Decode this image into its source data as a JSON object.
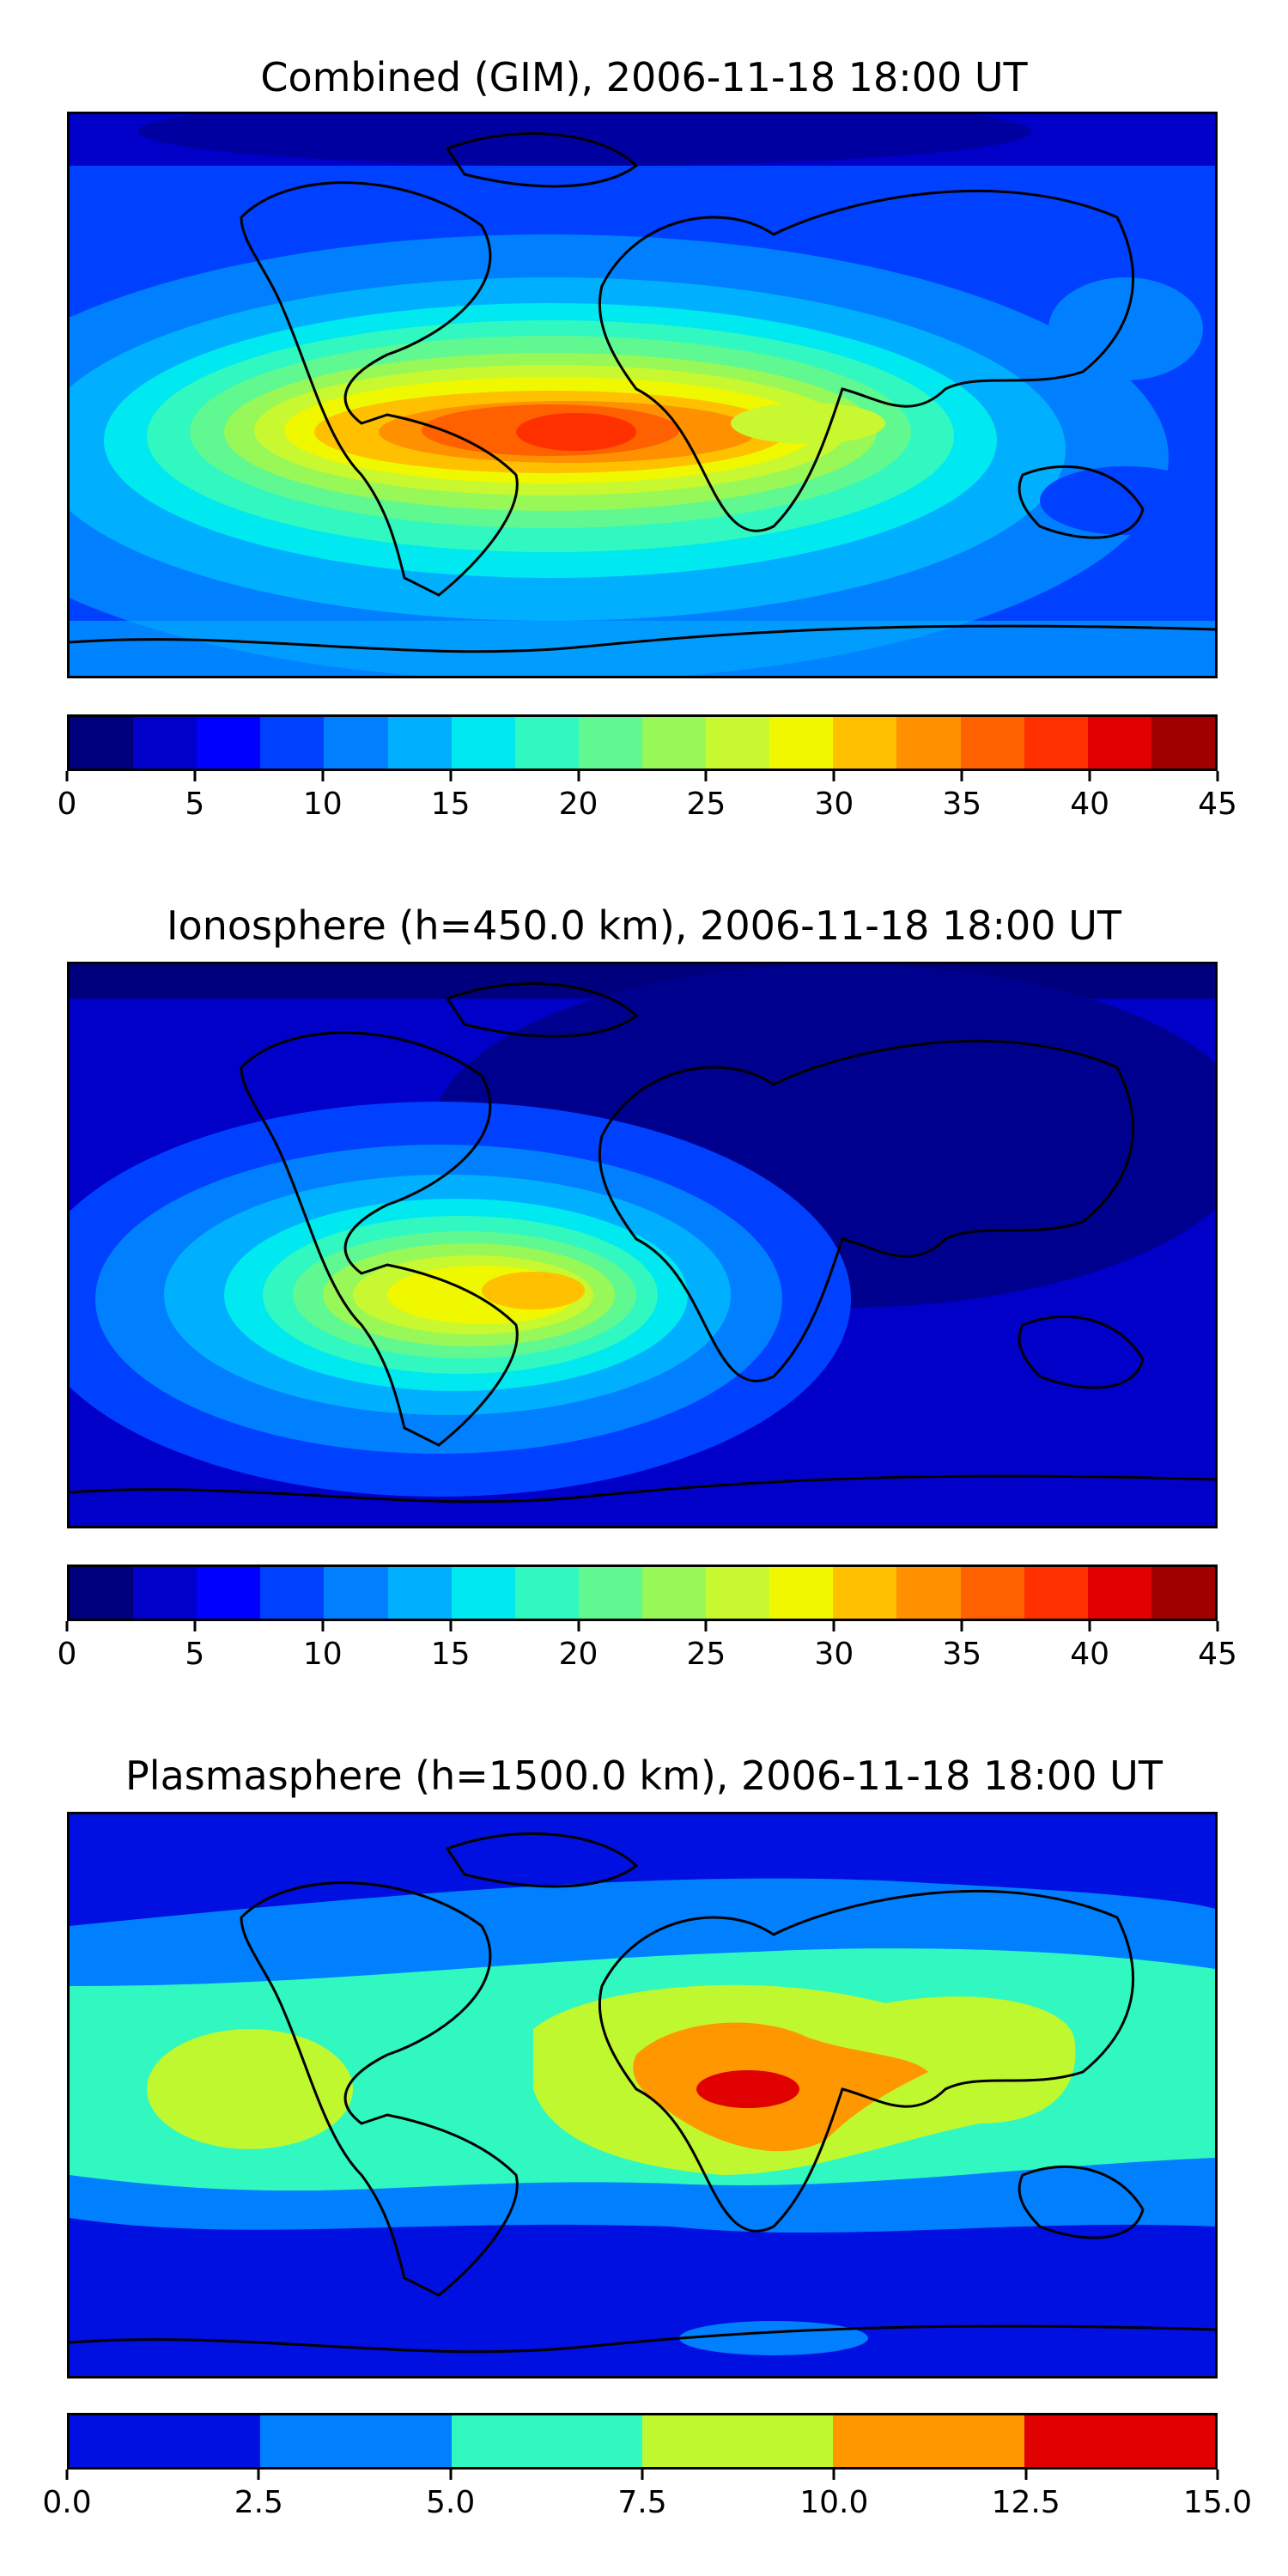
{
  "panels": [
    {
      "title": "Combined (GIM), 2006-11-18 18:00 UT",
      "colorbar": {
        "colors": [
          "#00007f",
          "#0000c8",
          "#0000ff",
          "#0040ff",
          "#0080ff",
          "#00b0ff",
          "#00e8f0",
          "#30f8c0",
          "#60f890",
          "#98f858",
          "#c8f830",
          "#f0f800",
          "#ffc000",
          "#ff9000",
          "#ff6000",
          "#ff3000",
          "#e00000",
          "#a00000"
        ],
        "ticks": [
          "0",
          "5",
          "10",
          "15",
          "20",
          "25",
          "30",
          "35",
          "40",
          "45"
        ]
      }
    },
    {
      "title": "Ionosphere  (h=450.0 km), 2006-11-18 18:00 UT",
      "colorbar": {
        "colors": [
          "#00007f",
          "#0000c8",
          "#0000ff",
          "#0040ff",
          "#0080ff",
          "#00b0ff",
          "#00e8f0",
          "#30f8c0",
          "#60f890",
          "#98f858",
          "#c8f830",
          "#f0f800",
          "#ffc000",
          "#ff9000",
          "#ff6000",
          "#ff3000",
          "#e00000",
          "#a00000"
        ],
        "ticks": [
          "0",
          "5",
          "10",
          "15",
          "20",
          "25",
          "30",
          "35",
          "40",
          "45"
        ]
      }
    },
    {
      "title": "Plasmasphere (h=1500.0 km), 2006-11-18 18:00 UT",
      "colorbar": {
        "colors": [
          "#0010e0",
          "#0080ff",
          "#30f8c0",
          "#c0f830",
          "#ff9800",
          "#e00000"
        ],
        "ticks": [
          "0.0",
          "2.5",
          "5.0",
          "7.5",
          "10.0",
          "12.5",
          "15.0"
        ]
      }
    }
  ]
}
